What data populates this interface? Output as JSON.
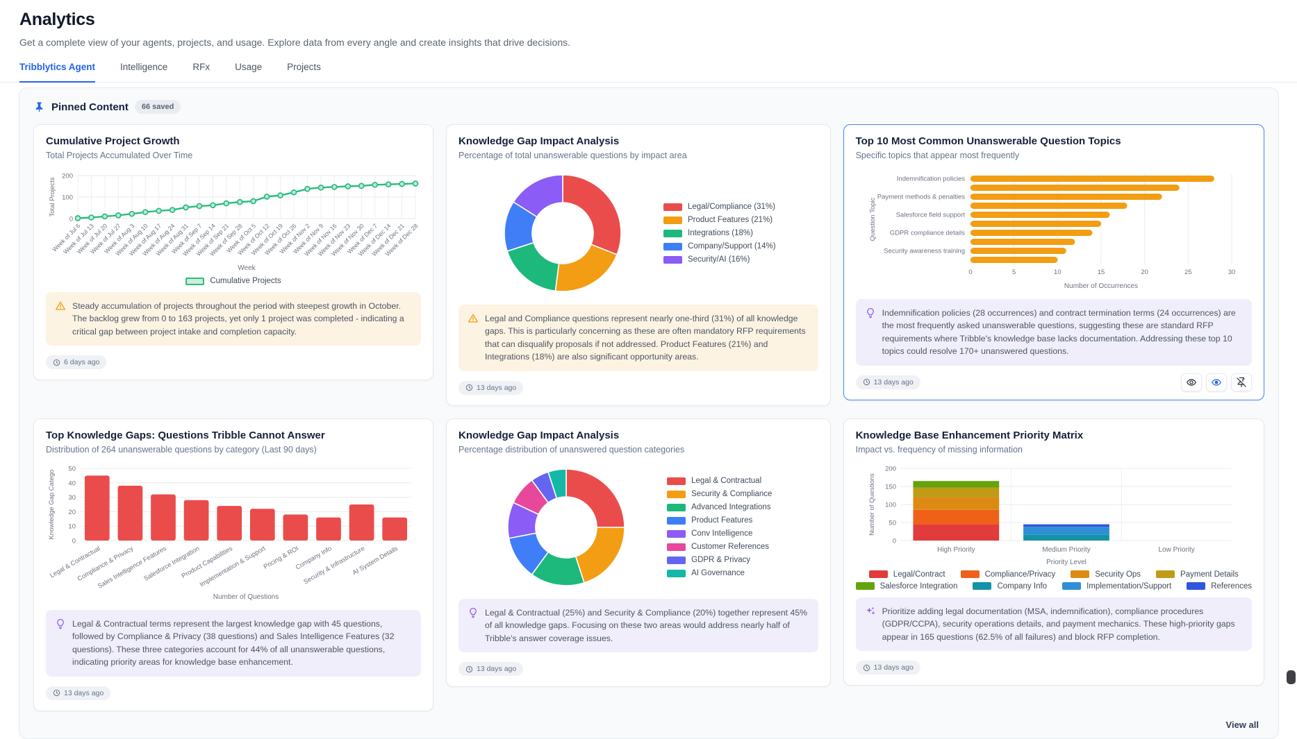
{
  "page": {
    "title": "Analytics",
    "subtitle": "Get a complete view of your agents, projects, and usage. Explore data from every angle and create insights that drive decisions."
  },
  "tabs": [
    {
      "label": "Tribblytics Agent",
      "active": true
    },
    {
      "label": "Intelligence",
      "active": false
    },
    {
      "label": "RFx",
      "active": false
    },
    {
      "label": "Usage",
      "active": false
    },
    {
      "label": "Projects",
      "active": false
    }
  ],
  "pinned": {
    "title": "Pinned Content",
    "badge": "66 saved",
    "view_all": "View all"
  },
  "colors": {
    "accent": "#2563eb",
    "selected_card_border": "#4285f4",
    "warning_icon": "#f59e0b",
    "insight_icon": "#8b5cf6",
    "warning_bg": "#fdf3e3",
    "insight_bg": "#f1eefb"
  },
  "cards": [
    {
      "title": "Cumulative Project Growth",
      "subtitle": "Total Projects Accumulated Over Time",
      "insight": {
        "icon": "warning",
        "text": "Steady accumulation of projects throughout the period with steepest growth in October. The backlog grew from 0 to 163 projects, yet only 1 project was completed - indicating a critical gap between project intake and completion capacity."
      },
      "timestamp": "6 days ago"
    },
    {
      "title": "Knowledge Gap Impact Analysis",
      "subtitle": "Percentage of total unanswerable questions by impact area",
      "insight": {
        "icon": "warning",
        "text": "Legal and Compliance questions represent nearly one-third (31%) of all knowledge gaps. This is particularly concerning as these are often mandatory RFP requirements that can disqualify proposals if not addressed. Product Features (21%) and Integrations (18%) are also significant opportunity areas."
      },
      "timestamp": "13 days ago"
    },
    {
      "title": "Top 10 Most Common Unanswerable Question Topics",
      "subtitle": "Specific topics that appear most frequently",
      "selected": true,
      "insight": {
        "icon": "lightbulb",
        "text": "Indemnification policies (28 occurrences) and contract termination terms (24 occurrences) are the most frequently asked unanswerable questions, suggesting these are standard RFP requirements where Tribble's knowledge base lacks documentation. Addressing these top 10 topics could resolve 170+ unanswered questions."
      },
      "timestamp": "13 days ago",
      "actions": [
        "view",
        "highlight-view",
        "unpin"
      ]
    },
    {
      "title": "Top Knowledge Gaps: Questions Tribble Cannot Answer",
      "subtitle": "Distribution of 264 unanswerable questions by category (Last 90 days)",
      "insight": {
        "icon": "lightbulb",
        "text": "Legal & Contractual terms represent the largest knowledge gap with 45 questions, followed by Compliance & Privacy (38 questions) and Sales Intelligence Features (32 questions). These three categories account for 44% of all unanswerable questions, indicating priority areas for knowledge base enhancement."
      },
      "timestamp": "13 days ago"
    },
    {
      "title": "Knowledge Gap Impact Analysis",
      "subtitle": "Percentage distribution of unanswered question categories",
      "insight": {
        "icon": "lightbulb",
        "text": "Legal & Contractual (25%) and Security & Compliance (20%) together represent 45% of all knowledge gaps. Focusing on these two areas would address nearly half of Tribble's answer coverage issues."
      },
      "timestamp": "13 days ago"
    },
    {
      "title": "Knowledge Base Enhancement Priority Matrix",
      "subtitle": "Impact vs. frequency of missing information",
      "insight": {
        "icon": "sparkles",
        "text": "Prioritize adding legal documentation (MSA, indemnification), compliance procedures (GDPR/CCPA), security operations details, and payment mechanics. These high-priority gaps appear in 165 questions (62.5% of all failures) and block RFP completion."
      },
      "timestamp": "13 days ago"
    }
  ],
  "chart_data": [
    {
      "type": "line",
      "title": "Cumulative Project Growth",
      "x": [
        "Week of Jul 6",
        "Week of Jul 13",
        "Week of Jul 20",
        "Week of Jul 27",
        "Week of Aug 3",
        "Week of Aug 10",
        "Week of Aug 17",
        "Week of Aug 24",
        "Week of Aug 31",
        "Week of Sep 7",
        "Week of Sep 14",
        "Week of Sep 21",
        "Week of Sep 28",
        "Week of Oct 5",
        "Week of Oct 12",
        "Week of Oct 19",
        "Week of Oct 26",
        "Week of Nov 2",
        "Week of Nov 9",
        "Week of Nov 16",
        "Week of Nov 23",
        "Week of Nov 30",
        "Week of Dec 7",
        "Week of Dec 14",
        "Week of Dec 21",
        "Week of Dec 28"
      ],
      "values": [
        2,
        5,
        10,
        15,
        22,
        30,
        36,
        40,
        52,
        58,
        62,
        71,
        77,
        81,
        102,
        108,
        122,
        138,
        144,
        147,
        150,
        152,
        157,
        159,
        161,
        163
      ],
      "xlabel": "Week",
      "ylabel": "Total Projects",
      "ylim": [
        0,
        200
      ],
      "yticks": [
        0,
        100,
        200
      ],
      "legend": "Cumulative Projects",
      "legend_position": "bottom",
      "grid": true,
      "color": "#2abb7f",
      "marker_fill": "#bce9d4"
    },
    {
      "type": "pie",
      "title": "Knowledge Gap Impact Analysis",
      "donut": true,
      "labels": [
        "Legal/Compliance (31%)",
        "Product Features (21%)",
        "Integrations (18%)",
        "Company/Support (14%)",
        "Security/AI (16%)"
      ],
      "values": [
        31,
        21,
        18,
        14,
        16
      ],
      "colors": [
        "#ea4c4c",
        "#f29d13",
        "#1db87b",
        "#3f7ef7",
        "#8b5cf6"
      ],
      "legend_position": "right"
    },
    {
      "type": "bar-horizontal",
      "title": "Top 10 Most Common Unanswerable Question Topics",
      "labels": [
        "Indemnification policies",
        "",
        "Payment methods & penalties",
        "",
        "Salesforce field support",
        "",
        "GDPR compliance details",
        "",
        "Security awareness training",
        ""
      ],
      "values": [
        28,
        24,
        22,
        18,
        16,
        15,
        14,
        12,
        11,
        10
      ],
      "xlabel": "Number of Occurrences",
      "ylabel": "Question Topic",
      "xlim": [
        0,
        30
      ],
      "xticks": [
        0,
        5,
        10,
        15,
        20,
        25,
        30
      ],
      "grid": true,
      "color": "#f29d13"
    },
    {
      "type": "bar",
      "title": "Top Knowledge Gaps: Questions Tribble Cannot Answer",
      "categories": [
        "Legal & Contractual",
        "Compliance & Privacy",
        "Sales Intelligence Features",
        "Salesforce Integration",
        "Product Capabilities",
        "Implementation & Support",
        "Pricing & ROI",
        "Company Info",
        "Security & Infrastructure",
        "AI System Details"
      ],
      "values": [
        45,
        38,
        32,
        28,
        24,
        22,
        18,
        16,
        25,
        16
      ],
      "xlabel": "Number of Questions",
      "ylabel": "Knowledge Gap Catego",
      "ylim": [
        0,
        50
      ],
      "yticks": [
        0,
        10,
        20,
        30,
        40,
        50
      ],
      "grid": true,
      "color": "#e94c4b"
    },
    {
      "type": "pie",
      "title": "Knowledge Gap Impact Analysis",
      "donut": true,
      "labels": [
        "Legal & Contractual",
        "Security & Compliance",
        "Advanced Integrations",
        "Product Features",
        "Conv Intelligence",
        "Customer References",
        "GDPR & Privacy",
        "AI Governance"
      ],
      "values": [
        25,
        20,
        15,
        12,
        10,
        8,
        5,
        5
      ],
      "colors": [
        "#ea4c4c",
        "#f29d13",
        "#1db87b",
        "#3f7ef7",
        "#8b5cf6",
        "#e8489b",
        "#6466f1",
        "#14b8a6"
      ],
      "legend_position": "right"
    },
    {
      "type": "bar-stacked",
      "title": "Knowledge Base Enhancement Priority Matrix",
      "categories": [
        "High Priority",
        "Medium Priority",
        "Low Priority"
      ],
      "series": [
        {
          "name": "Legal/Contract",
          "color": "#e13b3b",
          "values": [
            45,
            0,
            0
          ]
        },
        {
          "name": "Compliance/Privacy",
          "color": "#ef6018",
          "values": [
            40,
            0,
            0
          ]
        },
        {
          "name": "Security Ops",
          "color": "#dd8a12",
          "values": [
            35,
            0,
            0
          ]
        },
        {
          "name": "Payment Details",
          "color": "#bf9b16",
          "values": [
            27,
            0,
            0
          ]
        },
        {
          "name": "Salesforce Integration",
          "color": "#65a30d",
          "values": [
            18,
            0,
            0
          ]
        },
        {
          "name": "Company Info",
          "color": "#1493a6",
          "values": [
            0,
            16,
            0
          ]
        },
        {
          "name": "Implementation/Support",
          "color": "#2f8fd6",
          "values": [
            0,
            22,
            0
          ]
        },
        {
          "name": "References",
          "color": "#3056dd",
          "values": [
            0,
            7,
            0
          ]
        }
      ],
      "xlabel": "Priority Level",
      "ylabel": "Number of Questions",
      "ylim": [
        0,
        200
      ],
      "yticks": [
        0,
        50,
        100,
        150,
        200
      ],
      "grid": true,
      "legend_position": "bottom",
      "legend_rows": [
        [
          0,
          1,
          2,
          3
        ],
        [
          4,
          5,
          6,
          7
        ]
      ]
    }
  ]
}
